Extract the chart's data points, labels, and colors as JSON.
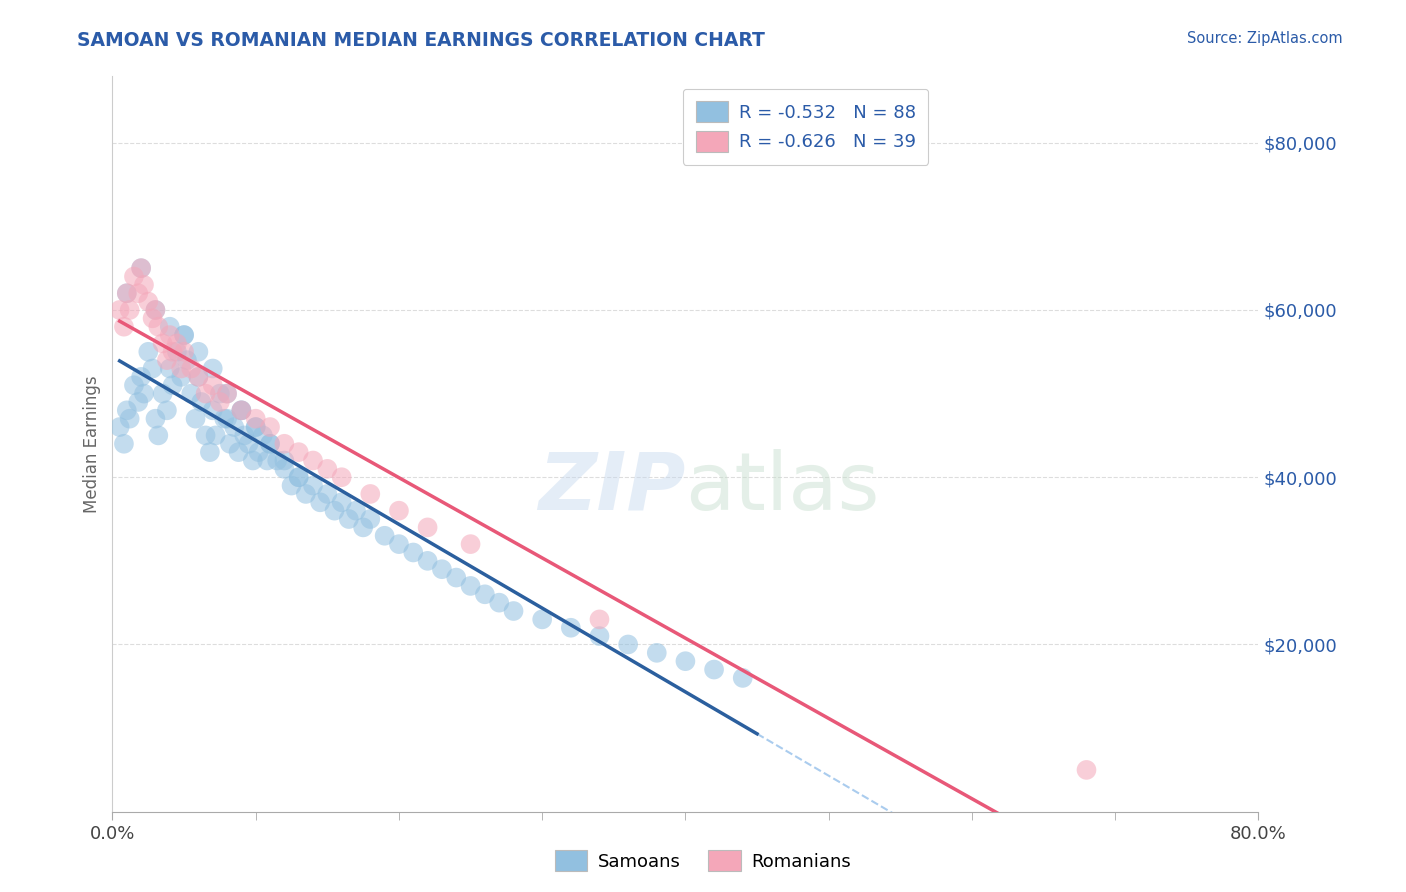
{
  "title": "SAMOAN VS ROMANIAN MEDIAN EARNINGS CORRELATION CHART",
  "source": "Source: ZipAtlas.com",
  "ylabel": "Median Earnings",
  "y_tick_values": [
    20000,
    40000,
    60000,
    80000
  ],
  "x_range": [
    0.0,
    0.8
  ],
  "y_range": [
    0,
    88000
  ],
  "legend_labels": [
    "Samoans",
    "Romanians"
  ],
  "legend_r_n": [
    {
      "R": "-0.532",
      "N": "88"
    },
    {
      "R": "-0.626",
      "N": "39"
    }
  ],
  "color_samoan": "#92C0E0",
  "color_romanian": "#F4A7B9",
  "color_samoan_line": "#2B5F9E",
  "color_romanian_line": "#E85878",
  "color_dashed": "#AACCEE",
  "title_color": "#2B5BA8",
  "source_color": "#2B5BA8",
  "axis_label_color": "#666666",
  "tick_color": "#2B5BA8",
  "grid_color": "#DDDDDD",
  "samoan_x": [
    0.005,
    0.008,
    0.01,
    0.012,
    0.015,
    0.018,
    0.02,
    0.022,
    0.025,
    0.028,
    0.03,
    0.032,
    0.035,
    0.038,
    0.04,
    0.042,
    0.045,
    0.048,
    0.05,
    0.052,
    0.055,
    0.058,
    0.06,
    0.062,
    0.065,
    0.068,
    0.07,
    0.072,
    0.075,
    0.078,
    0.08,
    0.082,
    0.085,
    0.088,
    0.09,
    0.092,
    0.095,
    0.098,
    0.1,
    0.102,
    0.105,
    0.108,
    0.11,
    0.115,
    0.12,
    0.125,
    0.13,
    0.135,
    0.14,
    0.145,
    0.15,
    0.155,
    0.16,
    0.165,
    0.17,
    0.175,
    0.18,
    0.19,
    0.2,
    0.21,
    0.22,
    0.23,
    0.24,
    0.25,
    0.26,
    0.27,
    0.28,
    0.3,
    0.32,
    0.34,
    0.36,
    0.38,
    0.4,
    0.42,
    0.44,
    0.01,
    0.02,
    0.03,
    0.04,
    0.05,
    0.06,
    0.07,
    0.08,
    0.09,
    0.1,
    0.11,
    0.12,
    0.13
  ],
  "samoan_y": [
    46000,
    44000,
    48000,
    47000,
    51000,
    49000,
    52000,
    50000,
    55000,
    53000,
    47000,
    45000,
    50000,
    48000,
    53000,
    51000,
    55000,
    52000,
    57000,
    54000,
    50000,
    47000,
    52000,
    49000,
    45000,
    43000,
    48000,
    45000,
    50000,
    47000,
    47000,
    44000,
    46000,
    43000,
    48000,
    45000,
    44000,
    42000,
    46000,
    43000,
    45000,
    42000,
    44000,
    42000,
    41000,
    39000,
    40000,
    38000,
    39000,
    37000,
    38000,
    36000,
    37000,
    35000,
    36000,
    34000,
    35000,
    33000,
    32000,
    31000,
    30000,
    29000,
    28000,
    27000,
    26000,
    25000,
    24000,
    23000,
    22000,
    21000,
    20000,
    19000,
    18000,
    17000,
    16000,
    62000,
    65000,
    60000,
    58000,
    57000,
    55000,
    53000,
    50000,
    48000,
    46000,
    44000,
    42000,
    40000
  ],
  "romanian_x": [
    0.005,
    0.008,
    0.01,
    0.012,
    0.015,
    0.018,
    0.02,
    0.022,
    0.025,
    0.028,
    0.03,
    0.032,
    0.035,
    0.038,
    0.04,
    0.042,
    0.045,
    0.048,
    0.05,
    0.055,
    0.06,
    0.065,
    0.07,
    0.075,
    0.08,
    0.09,
    0.1,
    0.11,
    0.12,
    0.13,
    0.14,
    0.15,
    0.16,
    0.18,
    0.2,
    0.22,
    0.25,
    0.34,
    0.68
  ],
  "romanian_y": [
    60000,
    58000,
    62000,
    60000,
    64000,
    62000,
    65000,
    63000,
    61000,
    59000,
    60000,
    58000,
    56000,
    54000,
    57000,
    55000,
    56000,
    53000,
    55000,
    53000,
    52000,
    50000,
    51000,
    49000,
    50000,
    48000,
    47000,
    46000,
    44000,
    43000,
    42000,
    41000,
    40000,
    38000,
    36000,
    34000,
    32000,
    23000,
    5000
  ],
  "x_tick_positions": [
    0.0,
    0.1,
    0.2,
    0.3,
    0.4,
    0.5,
    0.6,
    0.7,
    0.8
  ],
  "x_tick_minor_positions": [
    0.05,
    0.15,
    0.25,
    0.35,
    0.45,
    0.55,
    0.65,
    0.75
  ]
}
